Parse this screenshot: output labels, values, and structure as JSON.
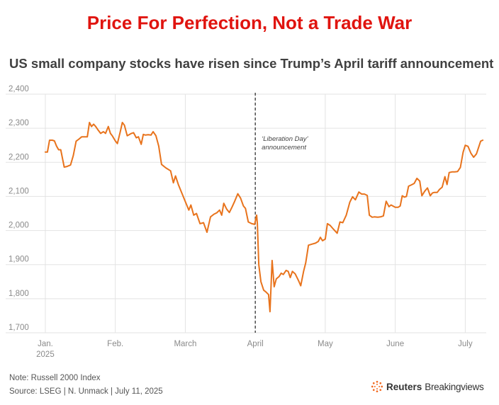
{
  "headline": "Price For Perfection, Not a Trade War",
  "chart_data": {
    "type": "line",
    "title": "US small company stocks have risen since Trump’s April tariff announcement",
    "ylim": [
      1700,
      2400
    ],
    "yticks": [
      "2,400",
      "2,300",
      "2,200",
      "2,100",
      "2,000",
      "1,900",
      "1,800",
      "1,700"
    ],
    "ytick_values": [
      2400,
      2300,
      2200,
      2100,
      2000,
      1900,
      1800,
      1700
    ],
    "xticks": [
      {
        "label": "Jan.",
        "sub": "2025",
        "x": 0
      },
      {
        "label": "Feb.",
        "x": 1
      },
      {
        "label": "March",
        "x": 2
      },
      {
        "label": "April",
        "x": 3
      },
      {
        "label": "May",
        "x": 4
      },
      {
        "label": "June",
        "x": 5
      },
      {
        "label": "July",
        "x": 6
      }
    ],
    "xlim": [
      -0.04,
      6.3
    ],
    "grid": true,
    "line_color": "#e8731c",
    "annotation": {
      "x": 3.0,
      "lines": [
        "‘Liberation Day’",
        "announcement"
      ]
    },
    "series": [
      {
        "name": "Russell 2000 Index",
        "points": [
          [
            0.0,
            2230
          ],
          [
            0.03,
            2230
          ],
          [
            0.06,
            2265
          ],
          [
            0.1,
            2265
          ],
          [
            0.13,
            2263
          ],
          [
            0.16,
            2248
          ],
          [
            0.19,
            2237
          ],
          [
            0.22,
            2237
          ],
          [
            0.27,
            2186
          ],
          [
            0.31,
            2188
          ],
          [
            0.36,
            2192
          ],
          [
            0.4,
            2220
          ],
          [
            0.44,
            2262
          ],
          [
            0.48,
            2268
          ],
          [
            0.52,
            2275
          ],
          [
            0.56,
            2275
          ],
          [
            0.6,
            2275
          ],
          [
            0.63,
            2317
          ],
          [
            0.66,
            2305
          ],
          [
            0.69,
            2312
          ],
          [
            0.72,
            2305
          ],
          [
            0.75,
            2296
          ],
          [
            0.79,
            2285
          ],
          [
            0.83,
            2290
          ],
          [
            0.86,
            2285
          ],
          [
            0.9,
            2305
          ],
          [
            0.93,
            2285
          ],
          [
            0.96,
            2277
          ],
          [
            1.0,
            2263
          ],
          [
            1.03,
            2255
          ],
          [
            1.07,
            2289
          ],
          [
            1.1,
            2317
          ],
          [
            1.13,
            2309
          ],
          [
            1.17,
            2278
          ],
          [
            1.23,
            2285
          ],
          [
            1.26,
            2287
          ],
          [
            1.3,
            2272
          ],
          [
            1.33,
            2275
          ],
          [
            1.37,
            2253
          ],
          [
            1.4,
            2282
          ],
          [
            1.43,
            2280
          ],
          [
            1.47,
            2281
          ],
          [
            1.51,
            2280
          ],
          [
            1.54,
            2290
          ],
          [
            1.58,
            2278
          ],
          [
            1.62,
            2248
          ],
          [
            1.66,
            2194
          ],
          [
            1.72,
            2184
          ],
          [
            1.79,
            2175
          ],
          [
            1.83,
            2140
          ],
          [
            1.86,
            2160
          ],
          [
            1.9,
            2135
          ],
          [
            2.0,
            2085
          ],
          [
            2.05,
            2060
          ],
          [
            2.08,
            2075
          ],
          [
            2.12,
            2045
          ],
          [
            2.16,
            2050
          ],
          [
            2.21,
            2020
          ],
          [
            2.26,
            2023
          ],
          [
            2.31,
            1995
          ],
          [
            2.36,
            2040
          ],
          [
            2.41,
            2048
          ],
          [
            2.45,
            2052
          ],
          [
            2.49,
            2060
          ],
          [
            2.52,
            2045
          ],
          [
            2.55,
            2080
          ],
          [
            2.59,
            2063
          ],
          [
            2.63,
            2053
          ],
          [
            2.67,
            2070
          ],
          [
            2.7,
            2083
          ],
          [
            2.75,
            2108
          ],
          [
            2.79,
            2095
          ],
          [
            2.83,
            2072
          ],
          [
            2.86,
            2065
          ],
          [
            2.9,
            2025
          ],
          [
            2.95,
            2020
          ],
          [
            2.99,
            2018
          ],
          [
            3.02,
            2045
          ],
          [
            3.03,
            2020
          ],
          [
            3.05,
            1900
          ],
          [
            3.08,
            1850
          ],
          [
            3.12,
            1825
          ],
          [
            3.15,
            1820
          ],
          [
            3.19,
            1812
          ],
          [
            3.21,
            1762
          ],
          [
            3.24,
            1912
          ],
          [
            3.27,
            1835
          ],
          [
            3.3,
            1858
          ],
          [
            3.34,
            1865
          ],
          [
            3.37,
            1875
          ],
          [
            3.4,
            1871
          ],
          [
            3.44,
            1883
          ],
          [
            3.47,
            1880
          ],
          [
            3.5,
            1862
          ],
          [
            3.53,
            1880
          ],
          [
            3.57,
            1873
          ],
          [
            3.62,
            1852
          ],
          [
            3.65,
            1838
          ],
          [
            3.69,
            1880
          ],
          [
            3.72,
            1905
          ],
          [
            3.76,
            1957
          ],
          [
            3.81,
            1960
          ],
          [
            3.86,
            1963
          ],
          [
            3.9,
            1968
          ],
          [
            3.93,
            1980
          ],
          [
            3.96,
            1970
          ],
          [
            4.0,
            1975
          ],
          [
            4.03,
            2020
          ],
          [
            4.07,
            2015
          ],
          [
            4.12,
            2003
          ],
          [
            4.17,
            1992
          ],
          [
            4.21,
            2025
          ],
          [
            4.25,
            2023
          ],
          [
            4.3,
            2045
          ],
          [
            4.35,
            2083
          ],
          [
            4.39,
            2099
          ],
          [
            4.43,
            2090
          ],
          [
            4.48,
            2113
          ],
          [
            4.52,
            2107
          ],
          [
            4.56,
            2107
          ],
          [
            4.6,
            2103
          ],
          [
            4.63,
            2045
          ],
          [
            4.67,
            2039
          ],
          [
            4.7,
            2040
          ],
          [
            4.75,
            2039
          ],
          [
            4.79,
            2040
          ],
          [
            4.83,
            2043
          ],
          [
            4.87,
            2086
          ],
          [
            4.91,
            2070
          ],
          [
            4.94,
            2075
          ],
          [
            5.0,
            2068
          ],
          [
            5.04,
            2068
          ],
          [
            5.07,
            2072
          ],
          [
            5.1,
            2102
          ],
          [
            5.13,
            2098
          ],
          [
            5.16,
            2100
          ],
          [
            5.19,
            2130
          ],
          [
            5.23,
            2134
          ],
          [
            5.27,
            2138
          ],
          [
            5.31,
            2153
          ],
          [
            5.35,
            2145
          ],
          [
            5.38,
            2102
          ],
          [
            5.42,
            2115
          ],
          [
            5.46,
            2125
          ],
          [
            5.5,
            2102
          ],
          [
            5.53,
            2110
          ],
          [
            5.56,
            2112
          ],
          [
            5.6,
            2112
          ],
          [
            5.63,
            2120
          ],
          [
            5.67,
            2127
          ],
          [
            5.71,
            2158
          ],
          [
            5.74,
            2135
          ],
          [
            5.77,
            2170
          ],
          [
            5.81,
            2172
          ],
          [
            5.85,
            2172
          ],
          [
            5.89,
            2173
          ],
          [
            5.93,
            2185
          ],
          [
            5.97,
            2230
          ],
          [
            6.0,
            2250
          ],
          [
            6.04,
            2247
          ],
          [
            6.08,
            2227
          ],
          [
            6.12,
            2215
          ],
          [
            6.16,
            2225
          ],
          [
            6.22,
            2262
          ],
          [
            6.25,
            2265
          ]
        ]
      }
    ]
  },
  "footer": {
    "note": "Note: Russell 2000 Index",
    "source": "Source: LSEG | N. Unmack | July 11, 2025"
  },
  "brand": {
    "name_bold": "Reuters",
    "name_light": "Breakingviews",
    "icon": "reuters-dots-icon"
  }
}
